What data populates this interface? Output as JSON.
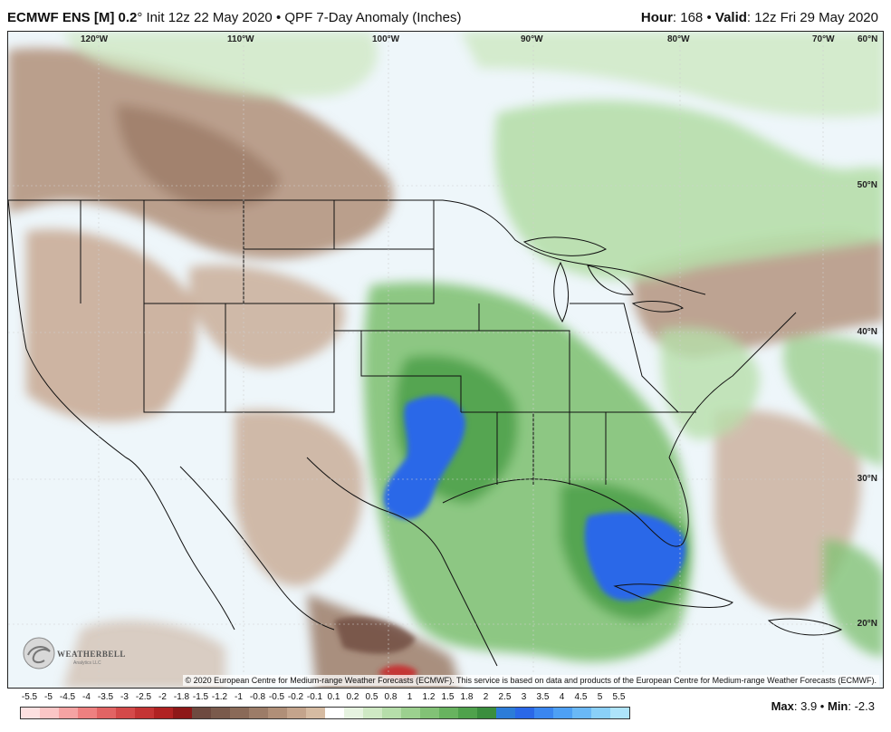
{
  "header": {
    "model": "ECMWF ENS [M] 0.2",
    "degree": "°",
    "init": "Init 12z 22 May 2020",
    "sep": "•",
    "product": "QPF 7-Day Anomaly (Inches)",
    "hour_label": "Hour",
    "hour_value": ": 168",
    "valid_label": "Valid",
    "valid_value": ": 12z Fri 29 May 2020"
  },
  "map": {
    "longitude_labels": [
      "120°W",
      "110°W",
      "100°W",
      "90°W",
      "80°W",
      "70°W",
      "60°N"
    ],
    "latitude_labels": [
      "50°N",
      "40°N",
      "30°N",
      "20°N"
    ],
    "copyright": "© 2020 European Centre for Medium-range Weather Forecasts (ECMWF). This service is based on data and products of the European Centre for Medium-range Weather Forecasts (ECMWF).",
    "logo_text": "WEATHERBELL",
    "logo_sub": "Analytics LLC"
  },
  "legend": {
    "ticks": [
      "-5.5",
      "-5",
      "-4.5",
      "-4",
      "-3.5",
      "-3",
      "-2.5",
      "-2",
      "-1.8",
      "-1.5",
      "-1.2",
      "-1",
      "-0.8",
      "-0.5",
      "-0.2",
      "-0.1",
      "0.1",
      "0.2",
      "0.5",
      "0.8",
      "1",
      "1.2",
      "1.5",
      "1.8",
      "2",
      "2.5",
      "3",
      "3.5",
      "4",
      "4.5",
      "5",
      "5.5"
    ],
    "colors": [
      "#fde0e0",
      "#fbc6c6",
      "#f5a3a3",
      "#ee8080",
      "#e26464",
      "#d44a4a",
      "#c43434",
      "#b02222",
      "#8e1818",
      "#6e4a40",
      "#7a5a4c",
      "#8a6a58",
      "#9c7c68",
      "#b08f78",
      "#c4a48c",
      "#d6bba2",
      "#ffffff",
      "#e6f3e0",
      "#cfe9c4",
      "#b6deaa",
      "#9cd08f",
      "#82c276",
      "#68b35f",
      "#4fa24c",
      "#3a8e3e",
      "#2c7cd8",
      "#2a68e8",
      "#3a86f0",
      "#4ea0f4",
      "#6ab8f6",
      "#8ad0f8",
      "#aee4fa"
    ],
    "max_label": "Max",
    "max_value": ": 3.9",
    "sep": "•",
    "min_label": "Min",
    "min_value": ": -2.3"
  }
}
